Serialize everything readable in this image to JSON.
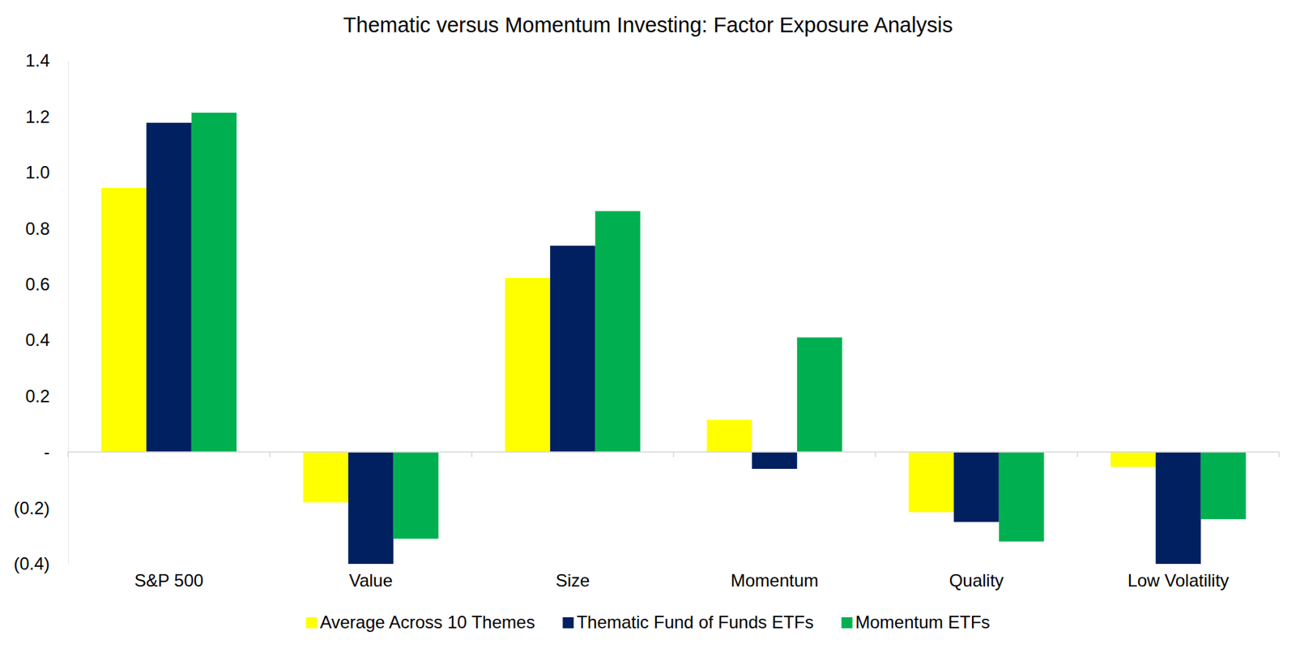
{
  "chart_data": {
    "type": "bar",
    "title": "Thematic versus Momentum Investing: Factor Exposure Analysis",
    "categories": [
      "S&P 500",
      "Value",
      "Size",
      "Momentum",
      "Quality",
      "Low Volatility"
    ],
    "series": [
      {
        "name": "Average Across 10 Themes",
        "color": "#ffff00",
        "values": [
          0.945,
          -0.18,
          0.623,
          0.115,
          -0.215,
          -0.053
        ]
      },
      {
        "name": "Thematic Fund of Funds ETFs",
        "color": "#002060",
        "values": [
          1.178,
          -0.4,
          0.738,
          -0.06,
          -0.25,
          -0.4
        ]
      },
      {
        "name": "Momentum ETFs",
        "color": "#00b050",
        "values": [
          1.214,
          -0.31,
          0.862,
          0.41,
          -0.32,
          -0.24
        ]
      }
    ],
    "ylim": [
      -0.4,
      1.4
    ],
    "yticks": [
      {
        "value": -0.4,
        "label": "(0.4)"
      },
      {
        "value": -0.2,
        "label": "(0.2)"
      },
      {
        "value": 0,
        "label": "-"
      },
      0.2,
      0.4,
      0.6,
      0.8,
      {
        "value": 1,
        "label": "1.0"
      },
      1.2,
      1.4
    ],
    "grid": false,
    "legend": "bottom"
  }
}
